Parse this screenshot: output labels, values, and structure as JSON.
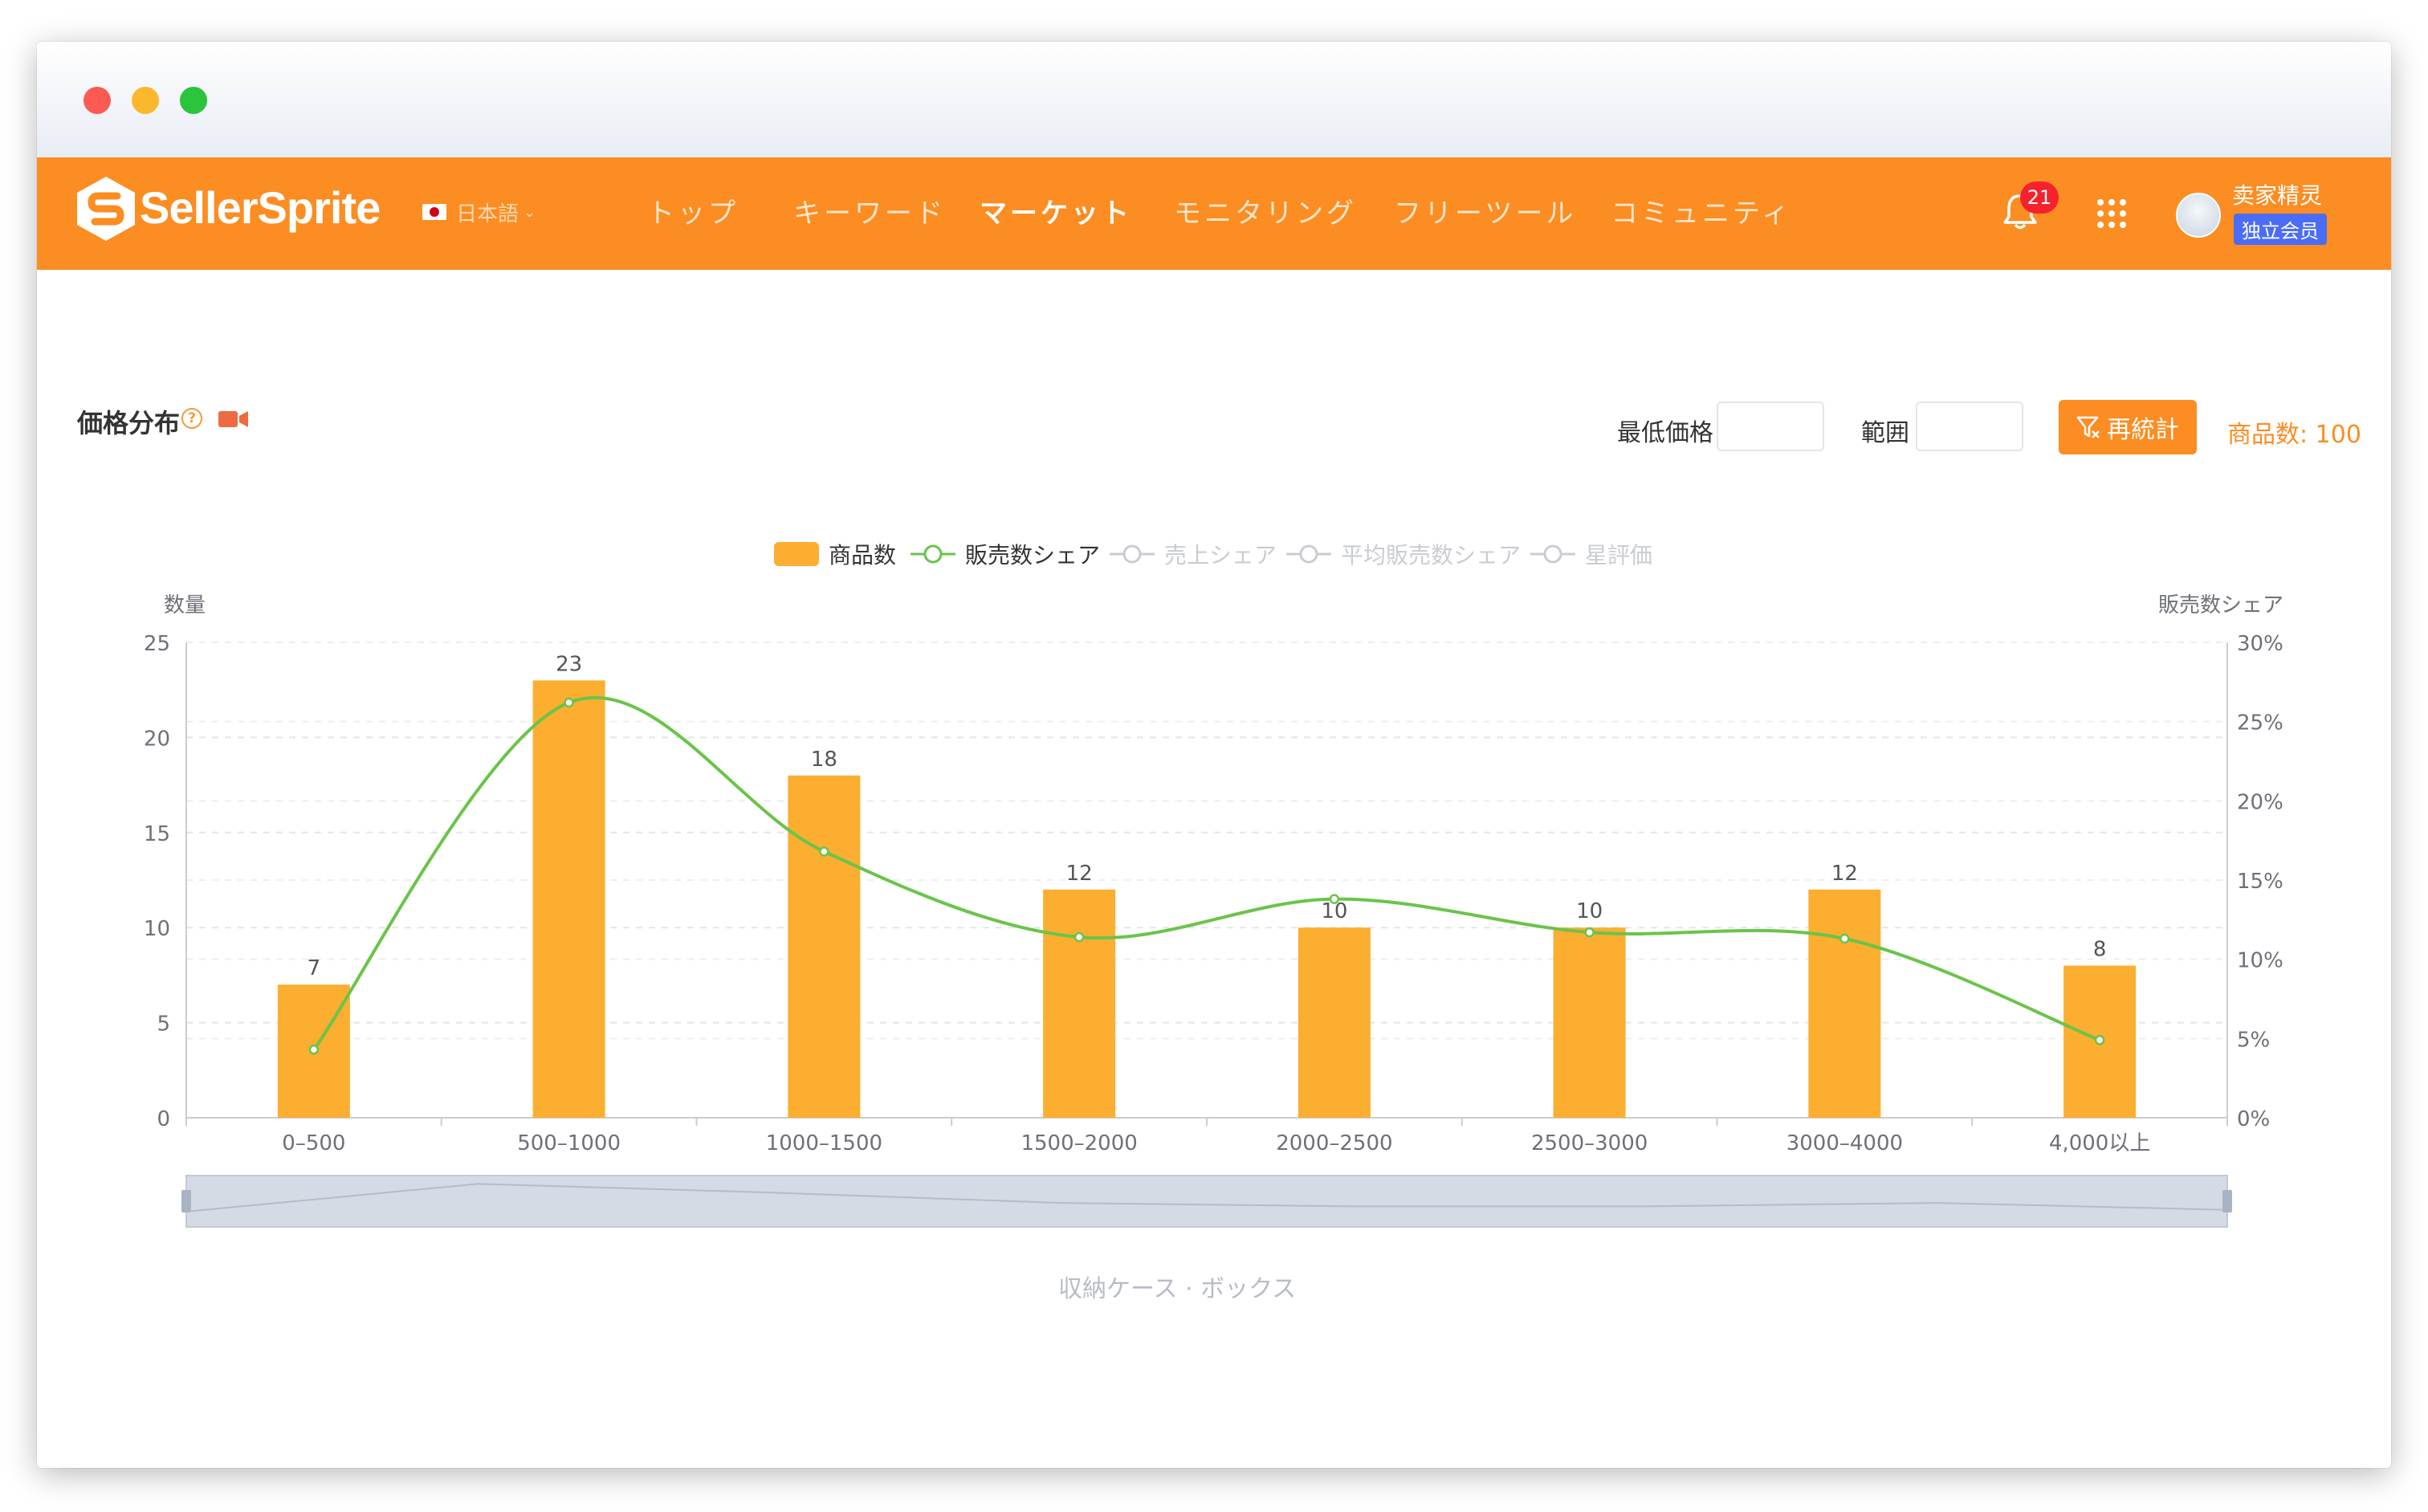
{
  "window": {
    "controls": [
      "close",
      "minimize",
      "maximize"
    ]
  },
  "navbar": {
    "logo_text": "SellerSprite",
    "language": "日本語",
    "items": [
      {
        "label": "トップ",
        "active": false
      },
      {
        "label": "キーワード",
        "active": false
      },
      {
        "label": "マーケット",
        "active": true
      },
      {
        "label": "モニタリング",
        "active": false
      },
      {
        "label": "フリーツール",
        "active": false
      },
      {
        "label": "コミュニティ",
        "active": false
      }
    ],
    "notification_count": "21",
    "username": "卖家精灵",
    "member_label": "独立会员",
    "icons": [
      "bell-icon",
      "apps-grid-icon",
      "avatar"
    ],
    "colors": {
      "bar": "#fb8d22",
      "member": "#4b6cf6",
      "badge": "#f5222d"
    }
  },
  "panel": {
    "title": "価格分布",
    "min_price_label": "最低価格",
    "min_price_value": "",
    "range_label": "範囲",
    "range_value": "",
    "recalc_label": "再統計",
    "product_count": "商品数: 100"
  },
  "legend": [
    {
      "label": "商品数",
      "type": "bar",
      "active": true
    },
    {
      "label": "販売数シェア",
      "type": "line",
      "active": true
    },
    {
      "label": "売上シェア",
      "type": "line",
      "active": false
    },
    {
      "label": "平均販売数シェア",
      "type": "line",
      "active": false
    },
    {
      "label": "星評価",
      "type": "line",
      "active": false
    }
  ],
  "chart_data": {
    "type": "bar",
    "categories": [
      "0–500",
      "500–1000",
      "1000–1500",
      "1500–2000",
      "2000–2500",
      "2500–3000",
      "3000–4000",
      "4,000以上"
    ],
    "series": [
      {
        "name": "商品数",
        "type": "bar",
        "axis": "left",
        "values": [
          7,
          23,
          18,
          12,
          10,
          10,
          12,
          8
        ],
        "color": "#fbae30"
      },
      {
        "name": "販売数シェア",
        "type": "line",
        "axis": "right",
        "values": [
          4.3,
          26.2,
          16.8,
          11.4,
          13.8,
          11.7,
          11.3,
          4.9
        ],
        "color": "#6ac44a"
      }
    ],
    "ylabel": "数量",
    "y2label": "販売数シェア",
    "ylim": [
      0,
      25
    ],
    "y2lim": [
      0,
      30
    ],
    "yticks": [
      "0",
      "5",
      "10",
      "15",
      "20",
      "25"
    ],
    "y2ticks": [
      "0%",
      "5%",
      "10%",
      "15%",
      "20%",
      "25%",
      "30%"
    ],
    "grid": true,
    "legend_position": "top-center",
    "xcaption": "収納ケース · ボックス"
  }
}
